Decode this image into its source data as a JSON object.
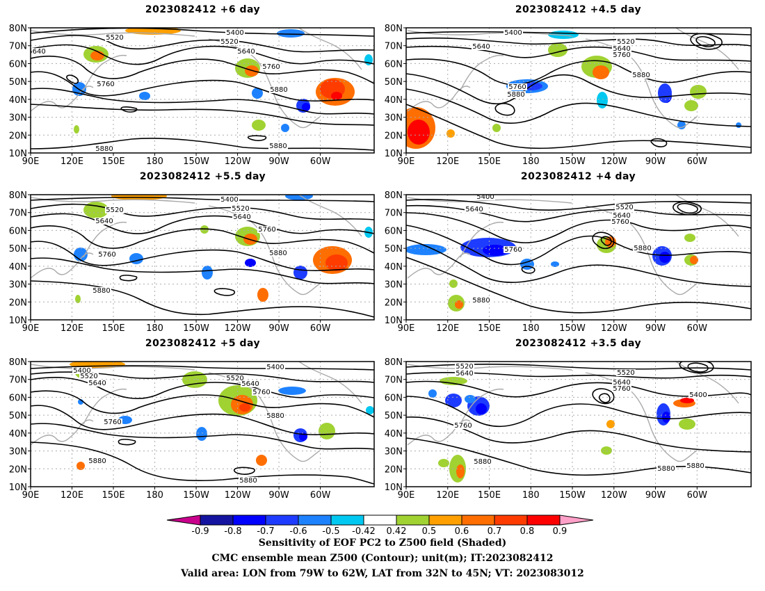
{
  "panels": [
    {
      "id": "p6",
      "title": "2023082412 +6 day",
      "labels": [
        {
          "t": "5400"
        },
        {
          "t": "5520"
        },
        {
          "t": "5640"
        },
        {
          "t": "5640"
        },
        {
          "t": "5520"
        },
        {
          "t": "5760"
        },
        {
          "t": "5760"
        },
        {
          "t": "5880"
        },
        {
          "t": "5880"
        },
        {
          "t": "5880"
        }
      ]
    },
    {
      "id": "p45",
      "title": "2023082412 +4.5 day",
      "labels": [
        {
          "t": "5400"
        },
        {
          "t": "5640"
        },
        {
          "t": "5520"
        },
        {
          "t": "5640"
        },
        {
          "t": "5760"
        },
        {
          "t": "5760"
        },
        {
          "t": "5880"
        },
        {
          "t": "5880"
        }
      ]
    },
    {
      "id": "p55",
      "title": "2023082412 +5.5 day",
      "labels": [
        {
          "t": "5400"
        },
        {
          "t": "5520"
        },
        {
          "t": "5640"
        },
        {
          "t": "5520"
        },
        {
          "t": "5640"
        },
        {
          "t": "5760"
        },
        {
          "t": "5760"
        },
        {
          "t": "5880"
        },
        {
          "t": "5880"
        }
      ]
    },
    {
      "id": "p4",
      "title": "2023082412 +4 day",
      "labels": [
        {
          "t": "5400"
        },
        {
          "t": "5640"
        },
        {
          "t": "5520"
        },
        {
          "t": "5640"
        },
        {
          "t": "5760"
        },
        {
          "t": "5760"
        },
        {
          "t": "5880"
        },
        {
          "t": "5880"
        }
      ]
    },
    {
      "id": "p5",
      "title": "2023082412 +5 day",
      "labels": [
        {
          "t": "5400"
        },
        {
          "t": "5520"
        },
        {
          "t": "5640"
        },
        {
          "t": "5400"
        },
        {
          "t": "5520"
        },
        {
          "t": "5640"
        },
        {
          "t": "5760"
        },
        {
          "t": "5760"
        },
        {
          "t": "5880"
        },
        {
          "t": "5880"
        },
        {
          "t": "5880"
        }
      ]
    },
    {
      "id": "p35",
      "title": "2023082412 +3.5 day",
      "labels": [
        {
          "t": "5520"
        },
        {
          "t": "5640"
        },
        {
          "t": "5520"
        },
        {
          "t": "5640"
        },
        {
          "t": "5760"
        },
        {
          "t": "5400"
        },
        {
          "t": "5760"
        },
        {
          "t": "5880"
        },
        {
          "t": "5880"
        },
        {
          "t": "5880"
        }
      ]
    }
  ],
  "lat_labels": [
    "80N",
    "70N",
    "60N",
    "50N",
    "40N",
    "30N",
    "20N",
    "10N"
  ],
  "lon_labels": [
    "90E",
    "120E",
    "150E",
    "180",
    "150W",
    "120W",
    "90W",
    "60W"
  ],
  "colorbar": {
    "ticks": [
      "-0.9",
      "-0.8",
      "-0.7",
      "-0.6",
      "-0.5",
      "-0.42",
      "0.42",
      "0.5",
      "0.6",
      "0.7",
      "0.8",
      "0.9"
    ],
    "colors": [
      "#c8008c",
      "#1414a0",
      "#0000ff",
      "#1e3cff",
      "#1e82ff",
      "#00c8f0",
      "#ffffff",
      "#a0d232",
      "#ffa000",
      "#ff6e00",
      "#ff3c00",
      "#ff0000",
      "#ffa0c8"
    ]
  },
  "colors": {
    "coast": "#aaaaaa",
    "contour": "#000000",
    "grid": "#aaaaaa"
  },
  "footer": [
    "Sensitivity of EOF PC2 to Z500 field (Shaded)",
    "CMC ensemble mean Z500 (Contour); unit(m); IT:2023082412",
    "Valid area: LON from 79W to 62W, LAT from 32N to 45N; VT: 2023083012"
  ]
}
